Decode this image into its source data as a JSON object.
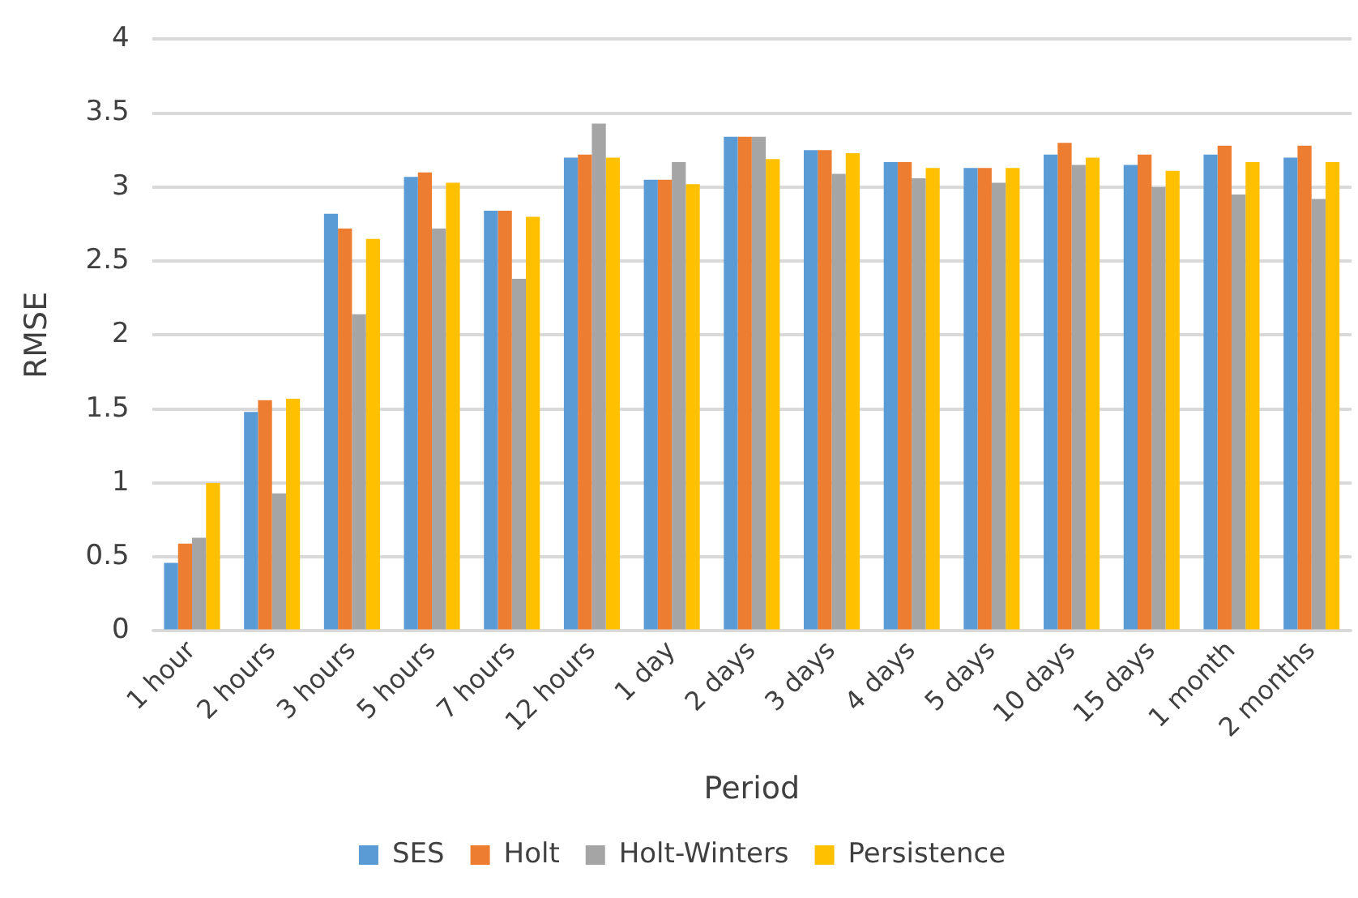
{
  "chart_data": {
    "type": "bar",
    "xlabel": "Period",
    "ylabel": "RMSE",
    "categories": [
      "1 hour",
      "2 hours",
      "3 hours",
      "5 hours",
      "7 hours",
      "12 hours",
      "1 day",
      "2 days",
      "3 days",
      "4 days",
      "5 days",
      "10 days",
      "15 days",
      "1 month",
      "2 months"
    ],
    "series": [
      {
        "name": "SES",
        "color": "#5b9bd5",
        "values": [
          0.46,
          1.48,
          2.82,
          3.07,
          2.84,
          3.2,
          3.05,
          3.34,
          3.25,
          3.17,
          3.13,
          3.22,
          3.15,
          3.22,
          3.2
        ]
      },
      {
        "name": "Holt",
        "color": "#ed7d31",
        "values": [
          0.59,
          1.56,
          2.72,
          3.1,
          2.84,
          3.22,
          3.05,
          3.34,
          3.25,
          3.17,
          3.13,
          3.3,
          3.22,
          3.28,
          3.28
        ]
      },
      {
        "name": "Holt-Winters",
        "color": "#a5a5a5",
        "values": [
          0.63,
          0.93,
          2.14,
          2.72,
          2.38,
          3.43,
          3.17,
          3.34,
          3.09,
          3.06,
          3.03,
          3.15,
          3.0,
          2.95,
          2.92
        ]
      },
      {
        "name": "Persistence",
        "color": "#ffc000",
        "values": [
          1.0,
          1.57,
          2.65,
          3.03,
          2.8,
          3.2,
          3.02,
          3.19,
          3.23,
          3.13,
          3.13,
          3.2,
          3.11,
          3.17,
          3.17
        ]
      }
    ],
    "ylim": [
      0,
      4
    ],
    "yticks": [
      0,
      0.5,
      1,
      1.5,
      2,
      2.5,
      3,
      3.5,
      4
    ],
    "grid": "y",
    "legend": "bottom"
  }
}
